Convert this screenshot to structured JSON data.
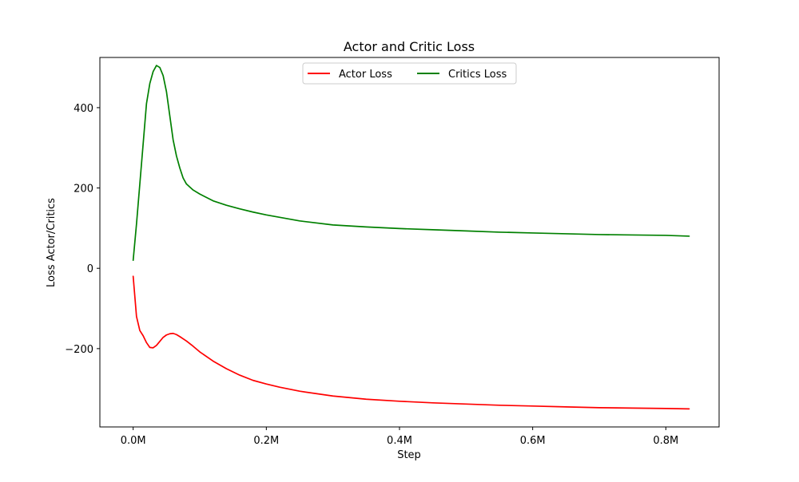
{
  "chart_data": {
    "type": "line",
    "title": "Actor and Critic Loss",
    "xlabel": "Step",
    "ylabel": "Loss Actor/Critics",
    "xlim": [
      -0.05,
      0.88
    ],
    "ylim": [
      -395,
      525
    ],
    "xticks": [
      {
        "value": 0.0,
        "label": "0.0M"
      },
      {
        "value": 0.2,
        "label": "0.2M"
      },
      {
        "value": 0.4,
        "label": "0.4M"
      },
      {
        "value": 0.6,
        "label": "0.6M"
      },
      {
        "value": 0.8,
        "label": "0.8M"
      }
    ],
    "yticks": [
      {
        "value": 400,
        "label": "400"
      },
      {
        "value": 200,
        "label": "200"
      },
      {
        "value": 0,
        "label": "0"
      },
      {
        "value": -200,
        "label": "−200"
      }
    ],
    "x_unit": "M steps",
    "grid": false,
    "legend": {
      "placement": "top-center",
      "columns": 2
    },
    "series": [
      {
        "name": "Actor Loss",
        "color": "#ff0000",
        "x": [
          0.0,
          0.005,
          0.01,
          0.015,
          0.02,
          0.025,
          0.03,
          0.035,
          0.04,
          0.045,
          0.05,
          0.055,
          0.06,
          0.065,
          0.07,
          0.08,
          0.09,
          0.1,
          0.12,
          0.14,
          0.16,
          0.18,
          0.2,
          0.22,
          0.25,
          0.3,
          0.35,
          0.4,
          0.45,
          0.5,
          0.55,
          0.6,
          0.65,
          0.7,
          0.75,
          0.8,
          0.835
        ],
        "y": [
          -20,
          -120,
          -155,
          -168,
          -185,
          -197,
          -198,
          -192,
          -182,
          -172,
          -166,
          -163,
          -162,
          -165,
          -170,
          -181,
          -194,
          -208,
          -231,
          -250,
          -266,
          -279,
          -288,
          -296,
          -306,
          -318,
          -326,
          -331,
          -335,
          -338,
          -341,
          -343,
          -345,
          -347,
          -348,
          -349,
          -350
        ]
      },
      {
        "name": "Critics Loss",
        "color": "#008000",
        "x": [
          0.0,
          0.005,
          0.01,
          0.015,
          0.02,
          0.025,
          0.03,
          0.035,
          0.04,
          0.045,
          0.05,
          0.055,
          0.06,
          0.065,
          0.07,
          0.075,
          0.08,
          0.09,
          0.1,
          0.12,
          0.14,
          0.16,
          0.18,
          0.2,
          0.22,
          0.25,
          0.3,
          0.35,
          0.4,
          0.45,
          0.5,
          0.55,
          0.6,
          0.65,
          0.7,
          0.75,
          0.8,
          0.835
        ],
        "y": [
          20,
          110,
          210,
          310,
          410,
          460,
          490,
          505,
          500,
          480,
          440,
          380,
          320,
          280,
          250,
          225,
          210,
          195,
          185,
          168,
          157,
          148,
          140,
          133,
          127,
          118,
          108,
          103,
          99,
          96,
          93,
          90,
          88,
          86,
          84,
          83,
          82,
          80
        ]
      }
    ]
  }
}
